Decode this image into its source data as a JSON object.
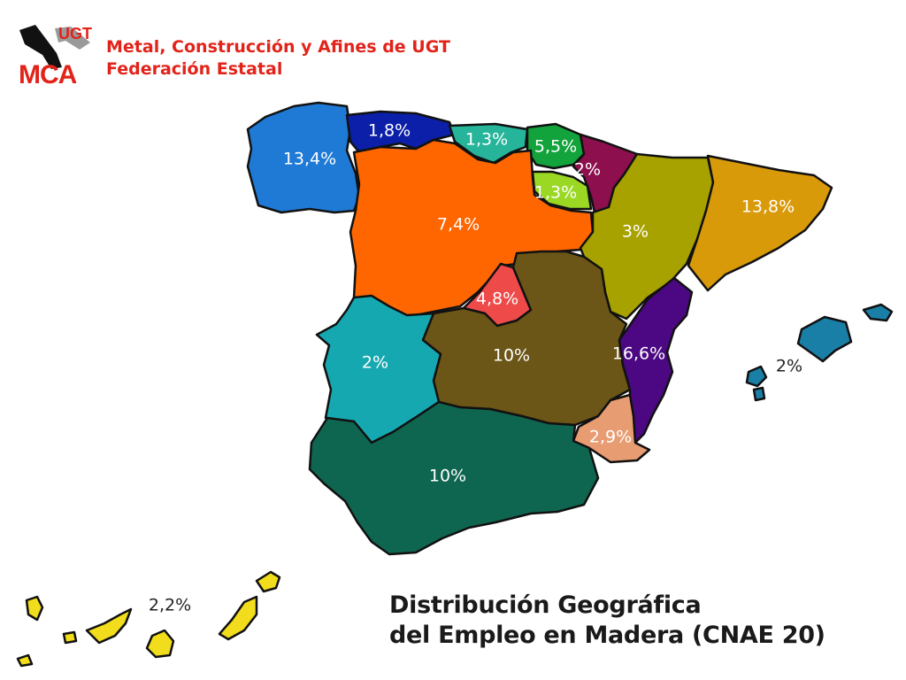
{
  "logo": {
    "text_top": "UGT",
    "text_bottom": "MCA"
  },
  "header": {
    "line1": "Metal, Construcción y Afines de UGT",
    "line2": "Federación Estatal"
  },
  "title": {
    "line1": "Distribución Geográfica",
    "line2": "del Empleo en Madera (CNAE 20)"
  },
  "regions": [
    {
      "id": "galicia",
      "label": "13,4%",
      "color": "#1f7ad6"
    },
    {
      "id": "asturias",
      "label": "1,8%",
      "color": "#0b1fa8"
    },
    {
      "id": "cantabria",
      "label": "1,3%",
      "color": "#26b59a"
    },
    {
      "id": "pais-vasco",
      "label": "5,5%",
      "color": "#13a33c"
    },
    {
      "id": "navarra",
      "label": "2%",
      "color": "#8d0f4e"
    },
    {
      "id": "la-rioja",
      "label": "1,3%",
      "color": "#9ad824"
    },
    {
      "id": "castilla-leon",
      "label": "7,4%",
      "color": "#ff6600"
    },
    {
      "id": "aragon",
      "label": "3%",
      "color": "#a8a200"
    },
    {
      "id": "cataluna",
      "label": "13,8%",
      "color": "#d99a0a"
    },
    {
      "id": "madrid",
      "label": "4,8%",
      "color": "#ef4a4a"
    },
    {
      "id": "castilla-la-mancha",
      "label": "10%",
      "color": "#6b5517"
    },
    {
      "id": "extremadura",
      "label": "2%",
      "color": "#16a8b0"
    },
    {
      "id": "valencia",
      "label": "16,6%",
      "color": "#4b0882"
    },
    {
      "id": "murcia",
      "label": "2,9%",
      "color": "#e89c72"
    },
    {
      "id": "andalucia",
      "label": "10%",
      "color": "#0f6650"
    },
    {
      "id": "baleares",
      "label": "2%",
      "color": "#1a7fa6"
    },
    {
      "id": "canarias",
      "label": "2,2%",
      "color": "#f2dd1c"
    }
  ]
}
